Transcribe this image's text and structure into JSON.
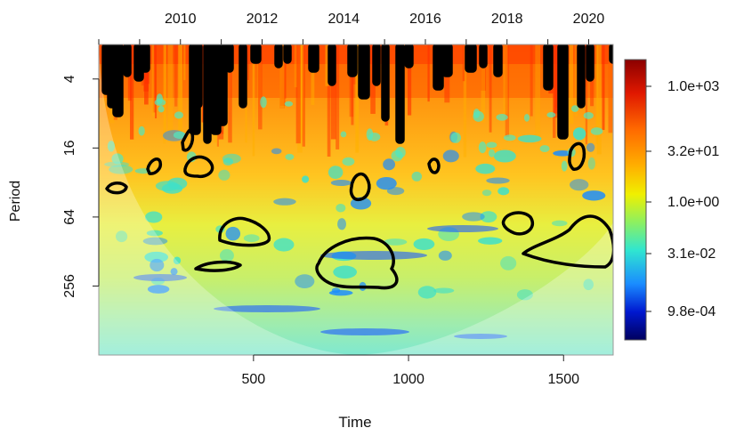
{
  "chart_data": {
    "type": "heatmap",
    "subtype": "wavelet power spectrum",
    "title": "",
    "xlabel": "Time",
    "ylabel": "Period",
    "x_bottom_ticks": [
      500,
      1000,
      1500
    ],
    "xlim": [
      1,
      1660
    ],
    "x_top_ticks": [
      "2010",
      "2012",
      "2014",
      "2016",
      "2018",
      "2020"
    ],
    "top_axis_range_years": [
      2008.0,
      2020.6
    ],
    "y_ticks": [
      4,
      16,
      64,
      256
    ],
    "y_scale": "log2",
    "ylim": [
      2,
      1024
    ],
    "colorbar": {
      "scale": "log",
      "ticks": [
        "1.0e+03",
        "3.2e+01",
        "1.0e+00",
        "3.1e-02",
        "9.8e-04"
      ],
      "colors": [
        "#8b0000",
        "#ff2a00",
        "#ff9a00",
        "#f5f000",
        "#9cf04a",
        "#2fe6d2",
        "#1a8cff",
        "#0000b0",
        "#00005e"
      ]
    },
    "cone_of_influence": true,
    "significance_contours": "black",
    "grid": false,
    "legend": "right"
  }
}
